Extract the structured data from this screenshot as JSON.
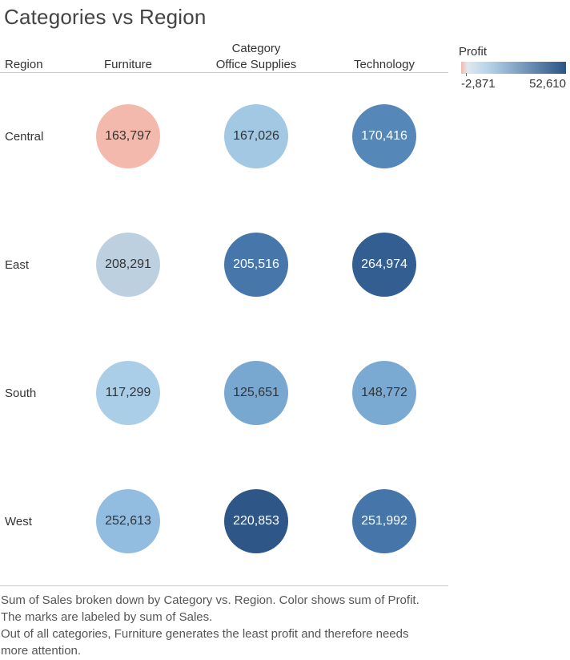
{
  "title": "Categories vs Region",
  "headers": {
    "row_dim": "Region",
    "col_dim": "Category",
    "categories": [
      "Furniture",
      "Office Supplies",
      "Technology"
    ]
  },
  "legend": {
    "title": "Profit",
    "min_label": "-2,871",
    "max_label": "52,610",
    "colors": {
      "negative": "#f2b9ac",
      "zero": "#dfe8f0",
      "low": "#b7d4ea",
      "high": "#2b5485"
    }
  },
  "chart_data": {
    "type": "table",
    "title": "Categories vs Region",
    "xlabel": "Category",
    "ylabel": "Region",
    "categories": [
      "Furniture",
      "Office Supplies",
      "Technology"
    ],
    "regions": [
      "Central",
      "East",
      "South",
      "West"
    ],
    "sales": [
      [
        163797,
        167026,
        170416
      ],
      [
        208291,
        205516,
        264974
      ],
      [
        117299,
        125651,
        148772
      ],
      [
        252613,
        220853,
        251992
      ]
    ],
    "sales_labels": [
      [
        "163,797",
        "167,026",
        "170,416"
      ],
      [
        "208,291",
        "205,516",
        "264,974"
      ],
      [
        "117,299",
        "125,651",
        "148,772"
      ],
      [
        "252,613",
        "220,853",
        "251,992"
      ]
    ],
    "mark_colors": [
      [
        "#f2b9ac",
        "#a2c8e4",
        "#5587b8"
      ],
      [
        "#bdd0e0",
        "#4777aa",
        "#335e91"
      ],
      [
        "#aacde8",
        "#78a7d0",
        "#7aaad2"
      ],
      [
        "#93bde0",
        "#2e5787",
        "#4575a9"
      ]
    ],
    "mark_text_colors": [
      [
        "#333333",
        "#333333",
        "#ffffff"
      ],
      [
        "#333333",
        "#ffffff",
        "#ffffff"
      ],
      [
        "#333333",
        "#333333",
        "#333333"
      ],
      [
        "#333333",
        "#ffffff",
        "#ffffff"
      ]
    ],
    "color_measure": "Profit",
    "color_range": [
      -2871,
      52610
    ]
  },
  "caption": {
    "line1": "Sum of Sales broken down by Category vs. Region.  Color shows sum of Profit.",
    "line2": "The marks are labeled by sum of Sales.",
    "line3": "Out of all categories, Furniture generates the least profit and therefore needs",
    "line4": "more attention."
  }
}
